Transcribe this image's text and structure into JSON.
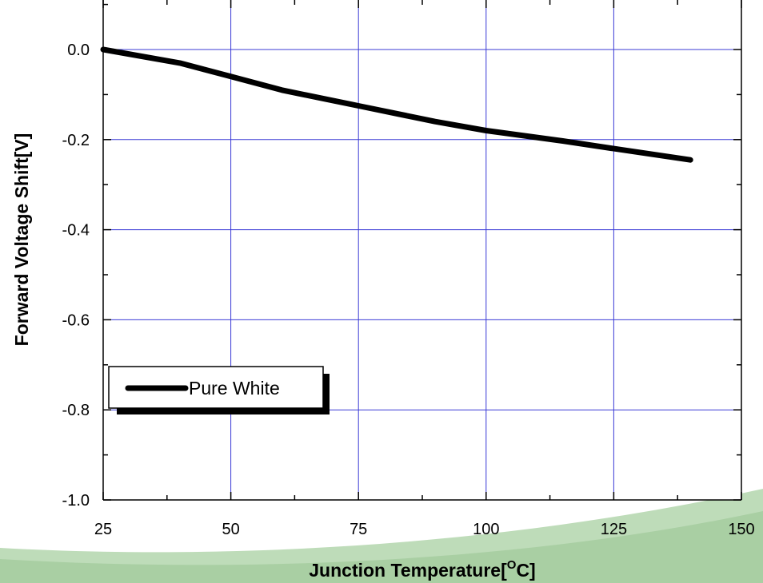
{
  "chart_data": {
    "type": "line",
    "title": "",
    "xlabel": "Junction Temperature[",
    "xlabel_superscript": "O",
    "xlabel_suffix": "C]",
    "ylabel": "Forward Voltage Shift[V]",
    "xlim": [
      25,
      150
    ],
    "ylim": [
      -1.0,
      0.1
    ],
    "x_ticks": [
      25,
      50,
      75,
      100,
      125,
      150
    ],
    "x_tick_labels": [
      "25",
      "50",
      "75",
      "100",
      "125",
      "150"
    ],
    "y_ticks": [
      0.0,
      -0.2,
      -0.4,
      -0.6,
      -0.8,
      -1.0
    ],
    "y_tick_labels": [
      "0.0",
      "-0.2",
      "-0.4",
      "-0.6",
      "-0.8",
      "-1.0"
    ],
    "grid": true,
    "legend_position": "bottom-left",
    "series": [
      {
        "name": "Pure White",
        "color": "#000000",
        "x": [
          25,
          40,
          50,
          60,
          75,
          90,
          100,
          115,
          125,
          140
        ],
        "y": [
          0.0,
          -0.03,
          -0.06,
          -0.09,
          -0.125,
          -0.16,
          -0.18,
          -0.203,
          -0.22,
          -0.245
        ]
      }
    ]
  },
  "colors": {
    "grid": "#3b3bd6",
    "axis": "#000000",
    "series": "#000000",
    "background_swoosh": "#a9cfa4"
  }
}
